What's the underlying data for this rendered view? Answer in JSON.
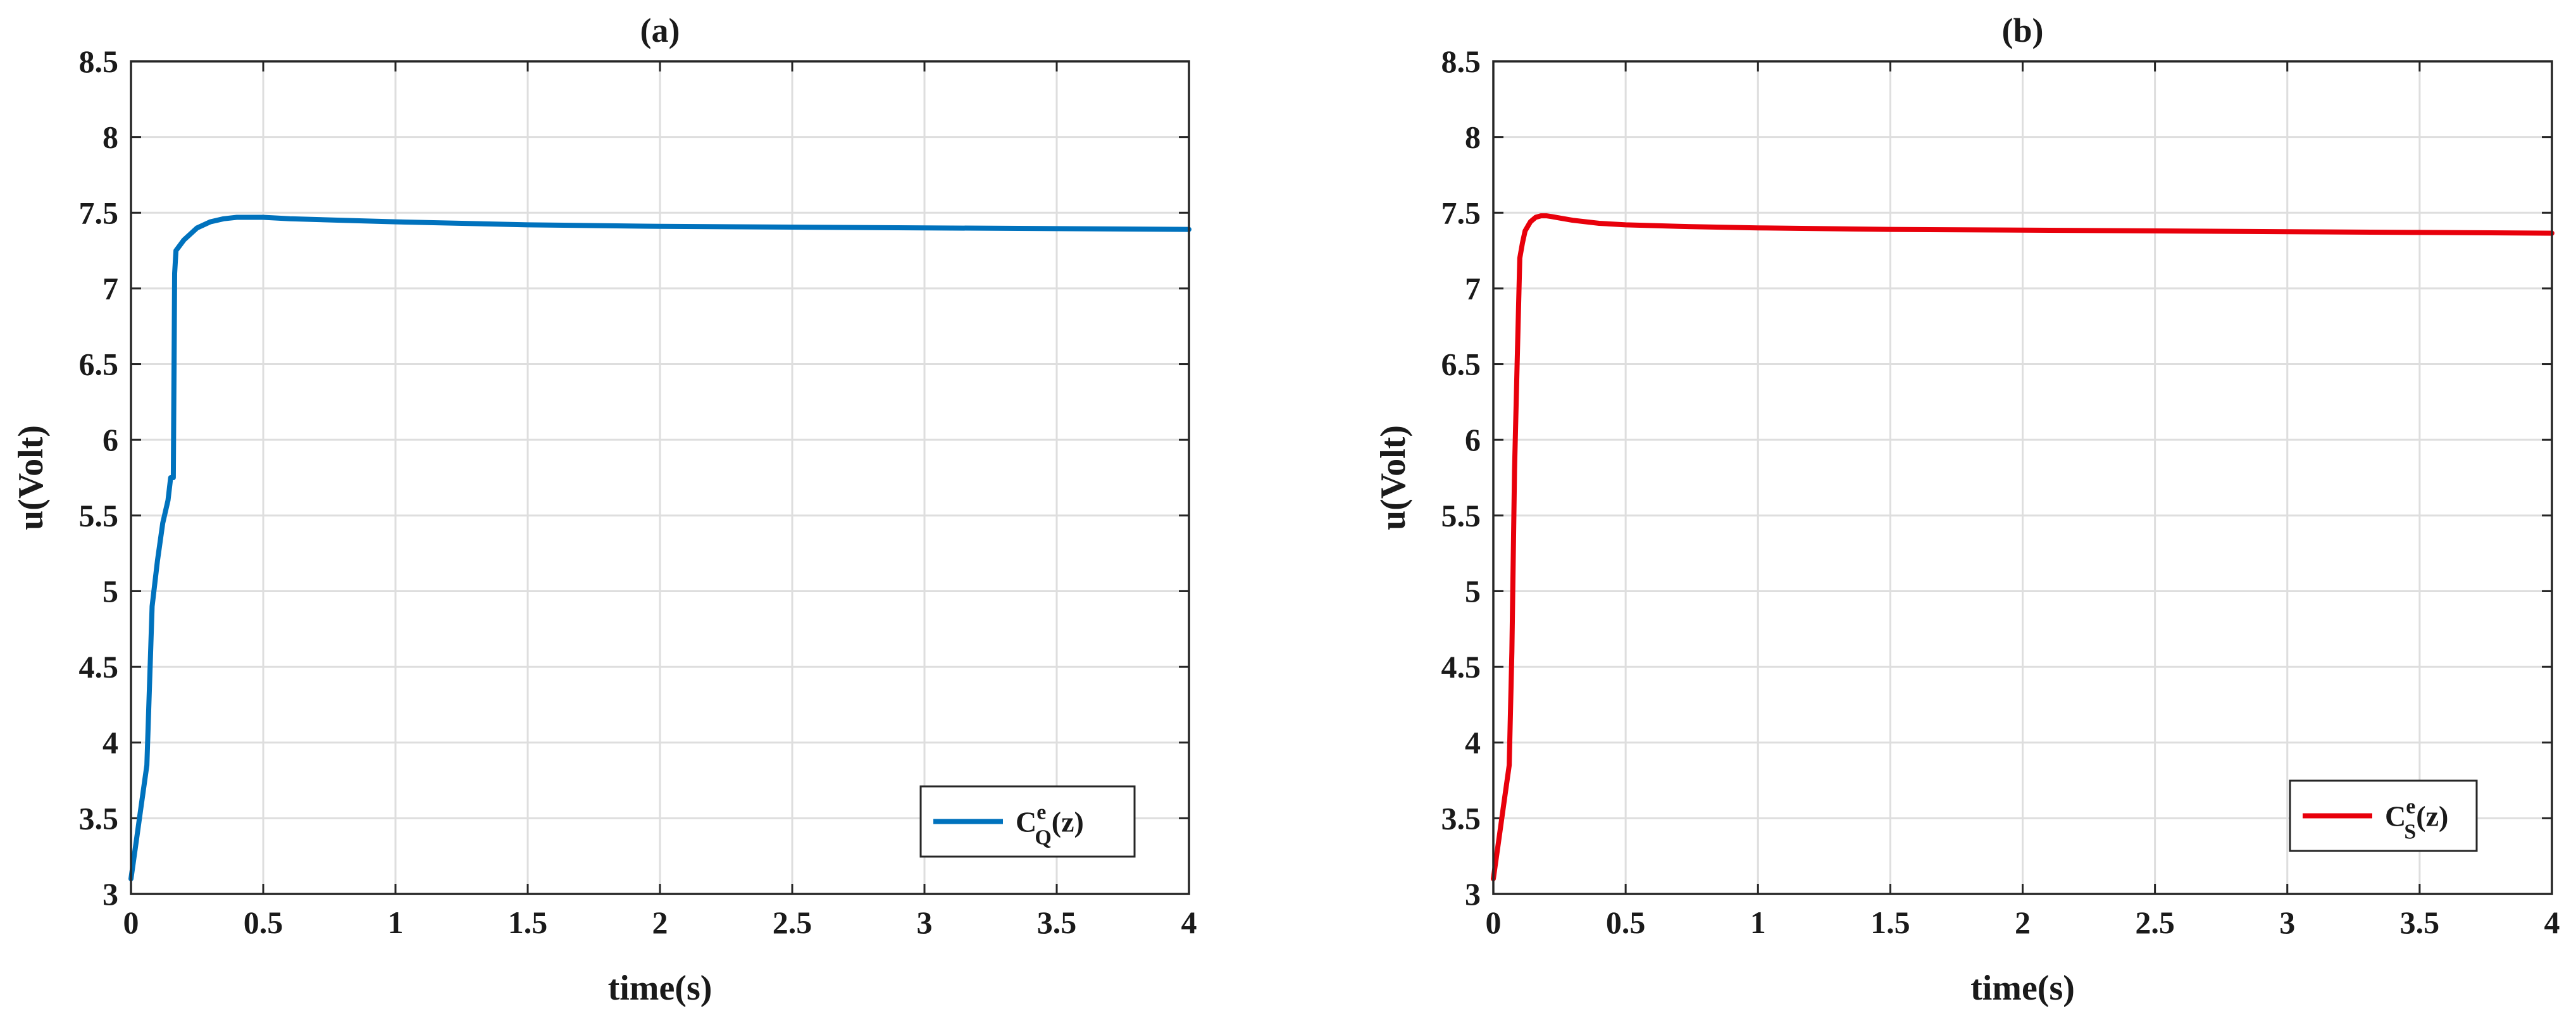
{
  "chart_data": [
    {
      "type": "line",
      "title": "(a)",
      "xlabel": "time(s)",
      "ylabel": "u(Volt)",
      "xlim": [
        0,
        4
      ],
      "ylim": [
        3,
        8.5
      ],
      "xticks": [
        0,
        0.5,
        1,
        1.5,
        2,
        2.5,
        3,
        3.5,
        4
      ],
      "yticks": [
        3,
        3.5,
        4,
        4.5,
        5,
        5.5,
        6,
        6.5,
        7,
        7.5,
        8,
        8.5
      ],
      "xtick_labels": [
        "0",
        "0.5",
        "1",
        "1.5",
        "2",
        "2.5",
        "3",
        "3.5",
        "4"
      ],
      "ytick_labels": [
        "3",
        "3.5",
        "4",
        "4.5",
        "5",
        "5.5",
        "6",
        "6.5",
        "7",
        "7.5",
        "8",
        "8.5"
      ],
      "grid": true,
      "legend_position": "bottom-right",
      "legend": {
        "main": "C",
        "sup": "e",
        "sub": "Q",
        "tail": "(z)"
      },
      "series": [
        {
          "color": "#0072BD",
          "x": [
            0,
            0.02,
            0.04,
            0.06,
            0.08,
            0.09,
            0.1,
            0.12,
            0.14,
            0.15,
            0.16,
            0.165,
            0.17,
            0.2,
            0.25,
            0.3,
            0.35,
            0.4,
            0.5,
            0.6,
            0.8,
            1.0,
            1.5,
            2.0,
            2.5,
            3.0,
            3.5,
            4.0
          ],
          "y": [
            3.1,
            3.35,
            3.6,
            3.85,
            4.9,
            5.05,
            5.2,
            5.45,
            5.6,
            5.75,
            5.75,
            7.1,
            7.25,
            7.32,
            7.4,
            7.44,
            7.46,
            7.47,
            7.47,
            7.46,
            7.45,
            7.44,
            7.42,
            7.41,
            7.405,
            7.4,
            7.395,
            7.39
          ]
        }
      ]
    },
    {
      "type": "line",
      "title": "(b)",
      "xlabel": "time(s)",
      "ylabel": "u(Volt)",
      "xlim": [
        0,
        4
      ],
      "ylim": [
        3,
        8.5
      ],
      "xticks": [
        0,
        0.5,
        1,
        1.5,
        2,
        2.5,
        3,
        3.5,
        4
      ],
      "yticks": [
        3,
        3.5,
        4,
        4.5,
        5,
        5.5,
        6,
        6.5,
        7,
        7.5,
        8,
        8.5
      ],
      "xtick_labels": [
        "0",
        "0.5",
        "1",
        "1.5",
        "2",
        "2.5",
        "3",
        "3.5",
        "4"
      ],
      "ytick_labels": [
        "3",
        "3.5",
        "4",
        "4.5",
        "5",
        "5.5",
        "6",
        "6.5",
        "7",
        "7.5",
        "8",
        "8.5"
      ],
      "grid": true,
      "legend_position": "bottom-right",
      "legend": {
        "main": "C",
        "sup": "e",
        "sub": "S",
        "tail": "(z)"
      },
      "series": [
        {
          "color": "#E8000B",
          "x": [
            0,
            0.02,
            0.04,
            0.06,
            0.07,
            0.08,
            0.09,
            0.1,
            0.11,
            0.12,
            0.14,
            0.16,
            0.18,
            0.2,
            0.22,
            0.25,
            0.3,
            0.4,
            0.5,
            0.7,
            1.0,
            1.5,
            2.0,
            2.5,
            3.0,
            3.5,
            4.0
          ],
          "y": [
            3.1,
            3.35,
            3.6,
            3.85,
            4.6,
            5.8,
            6.5,
            7.2,
            7.3,
            7.38,
            7.44,
            7.47,
            7.48,
            7.48,
            7.475,
            7.465,
            7.45,
            7.43,
            7.42,
            7.41,
            7.4,
            7.39,
            7.385,
            7.38,
            7.375,
            7.37,
            7.365
          ]
        }
      ]
    }
  ]
}
